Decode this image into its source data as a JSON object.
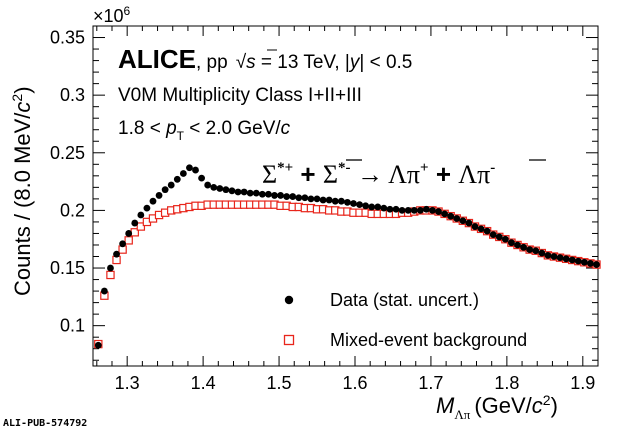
{
  "chart_data": {
    "type": "scatter",
    "xlabel": {
      "main": "M",
      "sub": "Λπ",
      "unit_prefix": "(GeV/",
      "unit_c": "c",
      "unit_exp": "2",
      "unit_close": ")"
    },
    "ylabel": {
      "prefix": "Counts / (8.0 MeV/",
      "c": "c",
      "exp": "2",
      "close": ")"
    },
    "y_multiplier": {
      "base": "×10",
      "exp": "6"
    },
    "xlim": [
      1.255,
      1.92
    ],
    "ylim": [
      0.065,
      0.36
    ],
    "xticks": [
      {
        "value": 1.3,
        "label": "1.3"
      },
      {
        "value": 1.4,
        "label": "1.4"
      },
      {
        "value": 1.5,
        "label": "1.5"
      },
      {
        "value": 1.6,
        "label": "1.6"
      },
      {
        "value": 1.7,
        "label": "1.7"
      },
      {
        "value": 1.8,
        "label": "1.8"
      },
      {
        "value": 1.9,
        "label": "1.9"
      }
    ],
    "yticks": [
      {
        "value": 0.1,
        "label": "0.1"
      },
      {
        "value": 0.15,
        "label": "0.15"
      },
      {
        "value": 0.2,
        "label": "0.2"
      },
      {
        "value": 0.25,
        "label": "0.25"
      },
      {
        "value": 0.3,
        "label": "0.3"
      },
      {
        "value": 0.35,
        "label": "0.35"
      }
    ],
    "annotations": {
      "experiment": "ALICE",
      "system": ", pp",
      "sqrt": "√",
      "s": "s",
      "energy": " = 13 TeV, |",
      "y": "y",
      "rapidity": "| < 0.5",
      "multiplicity": "V0M Multiplicity Class I+II+III",
      "pt_low": "1.8 < ",
      "pt_p": "p",
      "pt_sub": "T",
      "pt_high": " < 2.0 GeV/",
      "pt_c": "c",
      "decay": {
        "sigma1": "Σ",
        "sup1": "*+",
        "plus1": " + ",
        "sigma2": "Σ",
        "sup2": "*-",
        "arrow": " → ",
        "lam1": "Λπ",
        "sup3": "+",
        "plus2": " + ",
        "lam2": "Λ",
        "pi2": "π",
        "sup4": "-"
      }
    },
    "legend": {
      "position": "bottom-right",
      "entries": [
        "Data (stat. uncert.)",
        "Mixed-event background"
      ]
    },
    "footer": "ALI-PUB-574792",
    "series": [
      {
        "name": "Data (stat. uncert.)",
        "marker": "filled-circle",
        "color": "#000000",
        "x": [
          1.262,
          1.27,
          1.278,
          1.286,
          1.294,
          1.302,
          1.31,
          1.318,
          1.326,
          1.334,
          1.342,
          1.35,
          1.358,
          1.366,
          1.374,
          1.382,
          1.39,
          1.398,
          1.406,
          1.414,
          1.422,
          1.43,
          1.438,
          1.446,
          1.454,
          1.462,
          1.47,
          1.478,
          1.486,
          1.494,
          1.502,
          1.51,
          1.518,
          1.526,
          1.534,
          1.542,
          1.55,
          1.558,
          1.566,
          1.574,
          1.582,
          1.59,
          1.598,
          1.606,
          1.614,
          1.622,
          1.63,
          1.638,
          1.646,
          1.654,
          1.662,
          1.67,
          1.678,
          1.686,
          1.694,
          1.702,
          1.71,
          1.718,
          1.726,
          1.734,
          1.742,
          1.75,
          1.758,
          1.766,
          1.774,
          1.782,
          1.79,
          1.798,
          1.806,
          1.814,
          1.822,
          1.83,
          1.838,
          1.846,
          1.854,
          1.862,
          1.87,
          1.878,
          1.886,
          1.894,
          1.902,
          1.91,
          1.918
        ],
        "y": [
          0.083,
          0.13,
          0.15,
          0.162,
          0.171,
          0.18,
          0.189,
          0.196,
          0.202,
          0.208,
          0.213,
          0.218,
          0.222,
          0.227,
          0.232,
          0.237,
          0.235,
          0.228,
          0.222,
          0.22,
          0.219,
          0.218,
          0.217,
          0.216,
          0.216,
          0.215,
          0.215,
          0.214,
          0.214,
          0.213,
          0.213,
          0.212,
          0.212,
          0.211,
          0.211,
          0.21,
          0.21,
          0.209,
          0.209,
          0.208,
          0.208,
          0.207,
          0.206,
          0.205,
          0.204,
          0.203,
          0.203,
          0.202,
          0.201,
          0.201,
          0.2,
          0.2,
          0.2,
          0.2,
          0.201,
          0.2,
          0.199,
          0.197,
          0.195,
          0.193,
          0.191,
          0.189,
          0.186,
          0.184,
          0.182,
          0.179,
          0.177,
          0.175,
          0.172,
          0.17,
          0.168,
          0.166,
          0.165,
          0.163,
          0.161,
          0.16,
          0.159,
          0.158,
          0.157,
          0.156,
          0.155,
          0.154,
          0.153
        ]
      },
      {
        "name": "Mixed-event background",
        "marker": "open-square",
        "color": "#e8251b",
        "x": [
          1.262,
          1.27,
          1.278,
          1.286,
          1.294,
          1.302,
          1.31,
          1.318,
          1.326,
          1.334,
          1.342,
          1.35,
          1.358,
          1.366,
          1.374,
          1.382,
          1.39,
          1.398,
          1.406,
          1.414,
          1.422,
          1.43,
          1.438,
          1.446,
          1.454,
          1.462,
          1.47,
          1.478,
          1.486,
          1.494,
          1.502,
          1.51,
          1.518,
          1.526,
          1.534,
          1.542,
          1.55,
          1.558,
          1.566,
          1.574,
          1.582,
          1.59,
          1.598,
          1.606,
          1.614,
          1.622,
          1.63,
          1.638,
          1.646,
          1.654,
          1.662,
          1.67,
          1.678,
          1.686,
          1.694,
          1.702,
          1.71,
          1.718,
          1.726,
          1.734,
          1.742,
          1.75,
          1.758,
          1.766,
          1.774,
          1.782,
          1.79,
          1.798,
          1.806,
          1.814,
          1.822,
          1.83,
          1.838,
          1.846,
          1.854,
          1.862,
          1.87,
          1.878,
          1.886,
          1.894,
          1.902,
          1.91,
          1.918
        ],
        "y": [
          0.084,
          0.126,
          0.144,
          0.157,
          0.166,
          0.174,
          0.181,
          0.186,
          0.19,
          0.193,
          0.196,
          0.198,
          0.2,
          0.201,
          0.202,
          0.203,
          0.204,
          0.204,
          0.205,
          0.205,
          0.205,
          0.205,
          0.205,
          0.205,
          0.205,
          0.205,
          0.205,
          0.205,
          0.205,
          0.205,
          0.204,
          0.204,
          0.203,
          0.203,
          0.202,
          0.202,
          0.201,
          0.201,
          0.2,
          0.2,
          0.199,
          0.199,
          0.198,
          0.198,
          0.198,
          0.197,
          0.197,
          0.197,
          0.197,
          0.197,
          0.198,
          0.198,
          0.199,
          0.2,
          0.2,
          0.2,
          0.199,
          0.197,
          0.195,
          0.193,
          0.191,
          0.189,
          0.186,
          0.184,
          0.182,
          0.179,
          0.177,
          0.175,
          0.172,
          0.17,
          0.168,
          0.166,
          0.165,
          0.163,
          0.161,
          0.16,
          0.159,
          0.158,
          0.157,
          0.156,
          0.155,
          0.154,
          0.153
        ]
      }
    ]
  }
}
